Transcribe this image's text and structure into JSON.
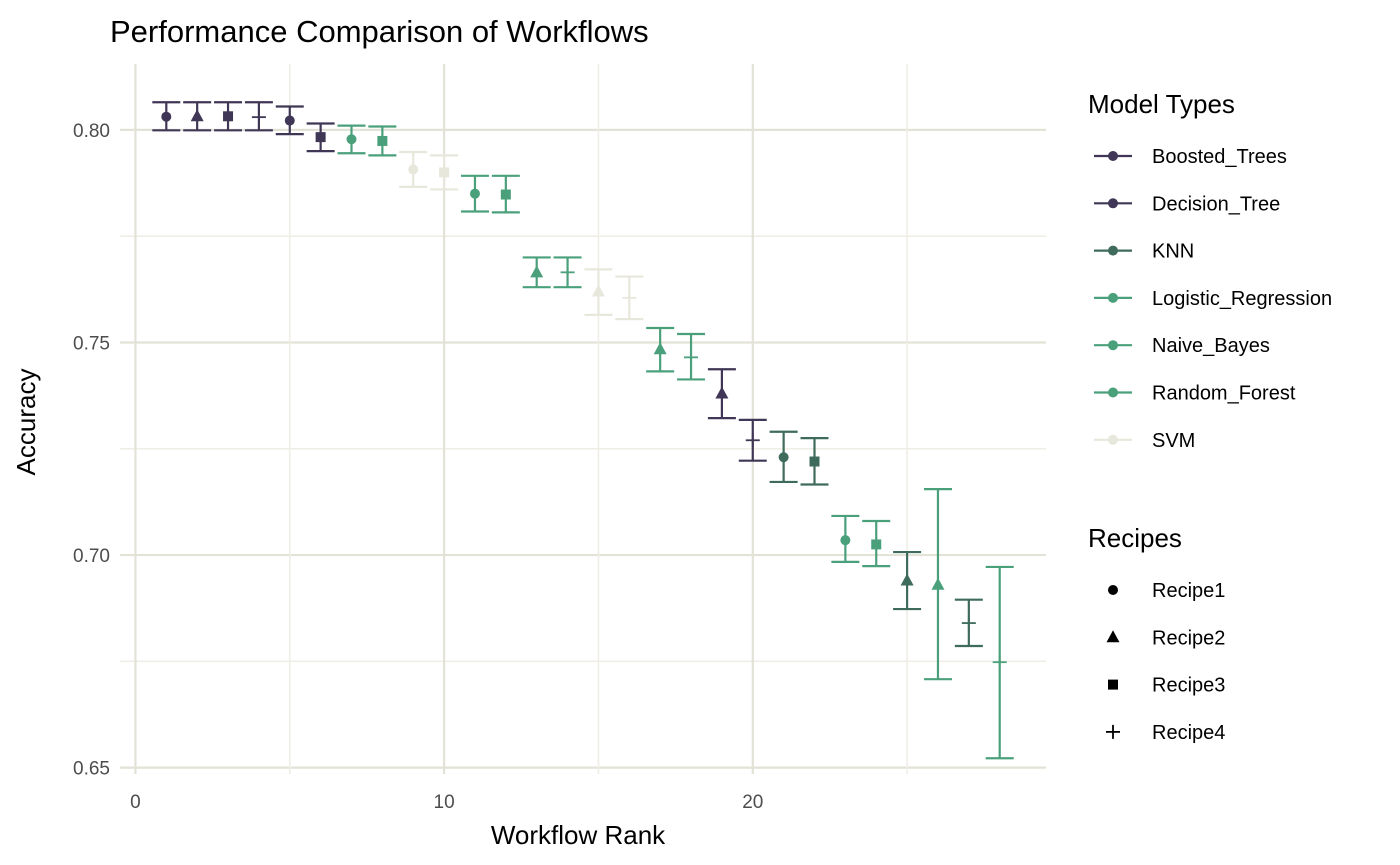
{
  "chart_data": {
    "type": "scatter",
    "title": "Performance Comparison of Workflows",
    "xlabel": "Workflow Rank",
    "ylabel": "Accuracy",
    "xlim": [
      -0.5,
      29.5
    ],
    "ylim": [
      0.6485,
      0.8155
    ],
    "x_ticks": [
      0,
      10,
      20
    ],
    "x_tick_labels": [
      "0",
      "10",
      "20"
    ],
    "y_ticks": [
      0.65,
      0.7,
      0.75,
      0.8
    ],
    "y_tick_labels": [
      "0.65",
      "0.70",
      "0.75",
      "0.80"
    ],
    "grid": true,
    "legend_position": "right",
    "error_bars": true,
    "model_legend_title": "Model Types",
    "recipe_legend_title": "Recipes",
    "models": [
      {
        "name": "Boosted_Trees",
        "color": "#3f3755"
      },
      {
        "name": "Decision_Tree",
        "color": "#3f3755"
      },
      {
        "name": "KNN",
        "color": "#3f6b5c"
      },
      {
        "name": "Logistic_Regression",
        "color": "#4aa07b"
      },
      {
        "name": "Naive_Bayes",
        "color": "#4aa07b"
      },
      {
        "name": "Random_Forest",
        "color": "#4aa07b"
      },
      {
        "name": "SVM",
        "color": "#e8e7dc"
      }
    ],
    "recipes": [
      {
        "name": "Recipe1",
        "shape": "circle"
      },
      {
        "name": "Recipe2",
        "shape": "triangle"
      },
      {
        "name": "Recipe3",
        "shape": "square"
      },
      {
        "name": "Recipe4",
        "shape": "plus"
      }
    ],
    "points": [
      {
        "rank": 1,
        "mean": 0.8031,
        "lower": 0.7999,
        "upper": 0.8065,
        "model": "Boosted_Trees",
        "recipe": "Recipe1"
      },
      {
        "rank": 2,
        "mean": 0.8032,
        "lower": 0.7999,
        "upper": 0.8065,
        "model": "Boosted_Trees",
        "recipe": "Recipe2"
      },
      {
        "rank": 3,
        "mean": 0.8032,
        "lower": 0.7999,
        "upper": 0.8065,
        "model": "Boosted_Trees",
        "recipe": "Recipe3"
      },
      {
        "rank": 4,
        "mean": 0.803,
        "lower": 0.7999,
        "upper": 0.8065,
        "model": "Boosted_Trees",
        "recipe": "Recipe4"
      },
      {
        "rank": 5,
        "mean": 0.8022,
        "lower": 0.799,
        "upper": 0.8055,
        "model": "Boosted_Trees",
        "recipe": "Recipe1"
      },
      {
        "rank": 6,
        "mean": 0.7983,
        "lower": 0.795,
        "upper": 0.8015,
        "model": "Decision_Tree",
        "recipe": "Recipe3"
      },
      {
        "rank": 7,
        "mean": 0.7978,
        "lower": 0.7945,
        "upper": 0.801,
        "model": "Random_Forest",
        "recipe": "Recipe1"
      },
      {
        "rank": 8,
        "mean": 0.7974,
        "lower": 0.794,
        "upper": 0.8008,
        "model": "Random_Forest",
        "recipe": "Recipe3"
      },
      {
        "rank": 9,
        "mean": 0.7907,
        "lower": 0.7866,
        "upper": 0.7948,
        "model": "SVM",
        "recipe": "Recipe1"
      },
      {
        "rank": 10,
        "mean": 0.79,
        "lower": 0.786,
        "upper": 0.794,
        "model": "SVM",
        "recipe": "Recipe3"
      },
      {
        "rank": 11,
        "mean": 0.785,
        "lower": 0.7808,
        "upper": 0.7892,
        "model": "Random_Forest",
        "recipe": "Recipe1"
      },
      {
        "rank": 12,
        "mean": 0.7848,
        "lower": 0.7806,
        "upper": 0.7892,
        "model": "Random_Forest",
        "recipe": "Recipe3"
      },
      {
        "rank": 13,
        "mean": 0.7665,
        "lower": 0.763,
        "upper": 0.77,
        "model": "Logistic_Regression",
        "recipe": "Recipe2"
      },
      {
        "rank": 14,
        "mean": 0.7665,
        "lower": 0.763,
        "upper": 0.77,
        "model": "Logistic_Regression",
        "recipe": "Recipe4"
      },
      {
        "rank": 15,
        "mean": 0.762,
        "lower": 0.7565,
        "upper": 0.7672,
        "model": "SVM",
        "recipe": "Recipe2"
      },
      {
        "rank": 16,
        "mean": 0.7605,
        "lower": 0.7555,
        "upper": 0.7655,
        "model": "SVM",
        "recipe": "Recipe4"
      },
      {
        "rank": 17,
        "mean": 0.7484,
        "lower": 0.7432,
        "upper": 0.7534,
        "model": "Naive_Bayes",
        "recipe": "Recipe2"
      },
      {
        "rank": 18,
        "mean": 0.7465,
        "lower": 0.7413,
        "upper": 0.752,
        "model": "Naive_Bayes",
        "recipe": "Recipe4"
      },
      {
        "rank": 19,
        "mean": 0.738,
        "lower": 0.7322,
        "upper": 0.7437,
        "model": "Decision_Tree",
        "recipe": "Recipe2"
      },
      {
        "rank": 20,
        "mean": 0.727,
        "lower": 0.7222,
        "upper": 0.7318,
        "model": "Decision_Tree",
        "recipe": "Recipe4"
      },
      {
        "rank": 21,
        "mean": 0.723,
        "lower": 0.7172,
        "upper": 0.729,
        "model": "KNN",
        "recipe": "Recipe1"
      },
      {
        "rank": 22,
        "mean": 0.722,
        "lower": 0.7166,
        "upper": 0.7275,
        "model": "KNN",
        "recipe": "Recipe3"
      },
      {
        "rank": 23,
        "mean": 0.7035,
        "lower": 0.6984,
        "upper": 0.7092,
        "model": "Naive_Bayes",
        "recipe": "Recipe1"
      },
      {
        "rank": 24,
        "mean": 0.7025,
        "lower": 0.6974,
        "upper": 0.708,
        "model": "Naive_Bayes",
        "recipe": "Recipe3"
      },
      {
        "rank": 25,
        "mean": 0.694,
        "lower": 0.6873,
        "upper": 0.7007,
        "model": "KNN",
        "recipe": "Recipe2"
      },
      {
        "rank": 26,
        "mean": 0.693,
        "lower": 0.6708,
        "upper": 0.7155,
        "model": "Logistic_Regression",
        "recipe": "Recipe2"
      },
      {
        "rank": 27,
        "mean": 0.684,
        "lower": 0.6786,
        "upper": 0.6895,
        "model": "KNN",
        "recipe": "Recipe4"
      },
      {
        "rank": 28,
        "mean": 0.6748,
        "lower": 0.6522,
        "upper": 0.6972,
        "model": "Logistic_Regression",
        "recipe": "Recipe4"
      }
    ]
  }
}
